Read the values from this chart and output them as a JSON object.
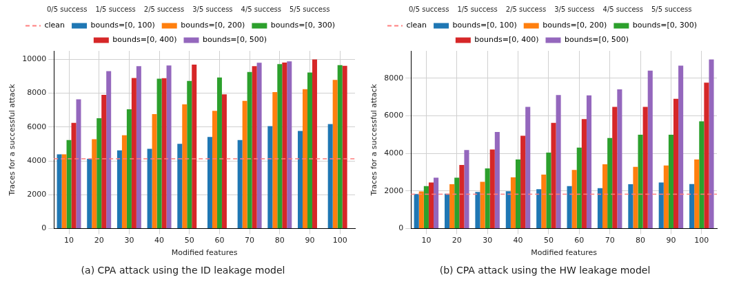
{
  "chart_data": [
    {
      "type": "bar",
      "title": "(a) CPA attack using the ID leakage model",
      "xlabel": "Modified features",
      "ylabel": "Traces for a successful attack",
      "categories": [
        "10",
        "20",
        "30",
        "40",
        "50",
        "60",
        "70",
        "80",
        "90",
        "100"
      ],
      "series": [
        {
          "name": "bounds=[0, 100)",
          "color": "#1f77b4",
          "values": [
            4390,
            4130,
            4620,
            4710,
            5010,
            5410,
            5230,
            6050,
            5770,
            6180
          ]
        },
        {
          "name": "bounds=[0, 200)",
          "color": "#ff7f0e",
          "values": [
            4390,
            5280,
            5520,
            6760,
            7340,
            6960,
            7550,
            8060,
            8240,
            8780
          ]
        },
        {
          "name": "bounds=[0, 300)",
          "color": "#2ca02c",
          "values": [
            5230,
            6520,
            7050,
            8860,
            8720,
            8930,
            9250,
            9720,
            9220,
            9660
          ]
        },
        {
          "name": "bounds=[0, 400)",
          "color": "#d62728",
          "values": [
            6250,
            7900,
            8900,
            8890,
            9690,
            7930,
            9600,
            9810,
            9990,
            9620
          ]
        },
        {
          "name": "bounds=[0, 500)",
          "color": "#9467bd",
          "values": [
            7640,
            9300,
            9600,
            9640,
            null,
            null,
            9800,
            9880,
            null,
            null
          ]
        }
      ],
      "ylim": [
        0,
        10500
      ],
      "yticks": [
        0,
        2000,
        4000,
        6000,
        8000,
        10000
      ],
      "grid": true,
      "legend": "top",
      "ref_lines": [
        {
          "axis": "y",
          "value": 4130,
          "label": "clean",
          "color": "#ff7f7f",
          "line_style": "dashed"
        }
      ],
      "annotations": [
        "0/5 success",
        "1/5 success",
        "2/5 success",
        "3/5 success",
        "4/5 success",
        "5/5 success"
      ]
    },
    {
      "type": "bar",
      "title": "(b) CPA attack using the HW leakage model",
      "xlabel": "Modified features",
      "ylabel": "Traces for a successful attack",
      "categories": [
        "10",
        "20",
        "30",
        "40",
        "50",
        "60",
        "70",
        "80",
        "90",
        "100"
      ],
      "series": [
        {
          "name": "bounds=[0, 100)",
          "color": "#1f77b4",
          "values": [
            1840,
            1860,
            1950,
            1990,
            2100,
            2260,
            2150,
            2360,
            2450,
            2370
          ]
        },
        {
          "name": "bounds=[0, 200)",
          "color": "#ff7f0e",
          "values": [
            1980,
            2360,
            2490,
            2730,
            2870,
            3120,
            3420,
            3280,
            3360,
            3680
          ]
        },
        {
          "name": "bounds=[0, 300)",
          "color": "#2ca02c",
          "values": [
            2260,
            2710,
            3200,
            3680,
            4040,
            4310,
            4820,
            4990,
            4990,
            5700
          ]
        },
        {
          "name": "bounds=[0, 400)",
          "color": "#d62728",
          "values": [
            2450,
            3380,
            4210,
            4940,
            5620,
            5820,
            6470,
            6470,
            6900,
            7760
          ]
        },
        {
          "name": "bounds=[0, 500)",
          "color": "#9467bd",
          "values": [
            2710,
            4180,
            5140,
            6470,
            7100,
            7080,
            7400,
            8400,
            8660,
            8990
          ]
        }
      ],
      "ylim": [
        0,
        9450
      ],
      "yticks": [
        0,
        2000,
        4000,
        6000,
        8000
      ],
      "grid": true,
      "legend": "top",
      "ref_lines": [
        {
          "axis": "y",
          "value": 1830,
          "label": "clean",
          "color": "#ff7f7f",
          "line_style": "dashed"
        }
      ],
      "annotations": [
        "0/5 success",
        "1/5 success",
        "2/5 success",
        "3/5 success",
        "4/5 success",
        "5/5 success"
      ]
    }
  ]
}
